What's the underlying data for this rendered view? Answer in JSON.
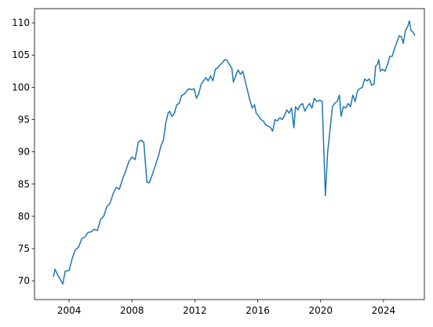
{
  "chart_data": {
    "type": "line",
    "x": [
      2003.0,
      2003.1,
      2003.3,
      2003.45,
      2003.6,
      2003.75,
      2004.0,
      2004.2,
      2004.4,
      2004.6,
      2004.8,
      2005.0,
      2005.2,
      2005.4,
      2005.6,
      2005.8,
      2006.0,
      2006.2,
      2006.4,
      2006.6,
      2006.8,
      2007.0,
      2007.2,
      2007.4,
      2007.6,
      2007.8,
      2008.0,
      2008.2,
      2008.4,
      2008.6,
      2008.75,
      2008.95,
      2009.1,
      2009.3,
      2009.5,
      2009.7,
      2009.85,
      2010.0,
      2010.15,
      2010.3,
      2010.4,
      2010.55,
      2010.7,
      2010.85,
      2011.0,
      2011.15,
      2011.35,
      2011.5,
      2011.65,
      2011.8,
      2011.95,
      2012.1,
      2012.25,
      2012.4,
      2012.55,
      2012.7,
      2012.85,
      2013.0,
      2013.15,
      2013.3,
      2013.45,
      2013.6,
      2013.75,
      2013.9,
      2014.05,
      2014.2,
      2014.35,
      2014.45,
      2014.6,
      2014.75,
      2014.9,
      2015.05,
      2015.2,
      2015.35,
      2015.5,
      2015.65,
      2015.8,
      2015.9,
      2016.05,
      2016.2,
      2016.35,
      2016.5,
      2016.65,
      2016.8,
      2016.95,
      2017.1,
      2017.25,
      2017.4,
      2017.55,
      2017.7,
      2017.85,
      2018.0,
      2018.15,
      2018.3,
      2018.4,
      2018.55,
      2018.7,
      2018.85,
      2019.0,
      2019.15,
      2019.3,
      2019.45,
      2019.6,
      2019.75,
      2019.95,
      2020.1,
      2020.3,
      2020.45,
      2020.6,
      2020.75,
      2020.9,
      2021.05,
      2021.2,
      2021.3,
      2021.45,
      2021.6,
      2021.75,
      2021.9,
      2022.05,
      2022.2,
      2022.35,
      2022.5,
      2022.65,
      2022.8,
      2022.95,
      2023.1,
      2023.25,
      2023.4,
      2023.5,
      2023.6,
      2023.7,
      2023.8,
      2023.95,
      2024.1,
      2024.25,
      2024.4,
      2024.55,
      2024.7,
      2024.85,
      2025.0,
      2025.15,
      2025.25,
      2025.4,
      2025.55,
      2025.65,
      2025.75,
      2025.9,
      2026.0
    ],
    "series": [
      {
        "color": "#1f77b4",
        "values": [
          70.6,
          71.8,
          70.8,
          70.2,
          69.5,
          71.5,
          71.6,
          73.5,
          74.8,
          75.2,
          76.5,
          76.8,
          77.5,
          77.6,
          78.0,
          77.8,
          79.5,
          80.0,
          81.5,
          82.0,
          83.5,
          84.5,
          84.2,
          85.8,
          87.0,
          88.5,
          89.2,
          88.8,
          91.5,
          91.8,
          91.5,
          85.3,
          85.2,
          86.5,
          88.0,
          89.5,
          91.0,
          91.8,
          94.5,
          96.0,
          96.3,
          95.5,
          96.0,
          97.3,
          97.5,
          98.7,
          99.0,
          99.5,
          99.8,
          99.6,
          99.8,
          98.3,
          99.0,
          100.5,
          101.0,
          101.5,
          101.0,
          101.8,
          101.0,
          102.8,
          103.0,
          103.5,
          103.8,
          104.3,
          104.2,
          103.5,
          103.0,
          100.8,
          101.8,
          102.7,
          102.0,
          102.5,
          101.0,
          99.5,
          98.0,
          96.8,
          97.3,
          96.0,
          95.6,
          95.0,
          94.8,
          94.2,
          94.0,
          93.8,
          93.2,
          95.0,
          94.8,
          95.3,
          95.0,
          95.6,
          96.5,
          96.0,
          96.8,
          93.7,
          97.0,
          96.5,
          97.2,
          97.5,
          96.3,
          97.0,
          97.5,
          96.8,
          98.3,
          97.8,
          98.0,
          97.8,
          83.2,
          90.0,
          93.5,
          97.0,
          97.5,
          97.8,
          98.8,
          95.5,
          97.0,
          96.8,
          97.5,
          97.0,
          98.8,
          97.8,
          99.5,
          99.8,
          100.0,
          101.3,
          101.0,
          101.3,
          100.3,
          100.5,
          103.3,
          103.5,
          104.3,
          102.5,
          102.8,
          102.5,
          103.5,
          104.8,
          104.8,
          106.0,
          107.0,
          108.0,
          107.8,
          106.8,
          108.8,
          109.5,
          110.3,
          108.8,
          108.5,
          108.0
        ]
      }
    ],
    "xlim": [
      2001.8,
      2026.6
    ],
    "xticks": [
      2004,
      2008,
      2012,
      2016,
      2020,
      2024
    ],
    "ylim": [
      67.1,
      112.2
    ],
    "yticks": [
      70,
      75,
      80,
      85,
      90,
      95,
      100,
      105,
      110
    ]
  }
}
